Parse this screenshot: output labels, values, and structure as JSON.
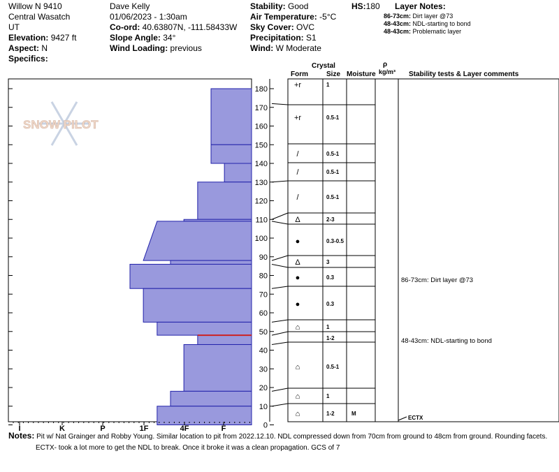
{
  "header": {
    "site": "Willow N 9410",
    "range": "Central Wasatch",
    "state": "UT",
    "elevation_label": "Elevation:",
    "elevation": "9427 ft",
    "aspect_label": "Aspect:",
    "aspect": "N",
    "specifics_label": "Specifics:",
    "observer": "Dave Kelly",
    "datetime": "01/06/2023 - 1:30am",
    "coord_label": "Co-ord:",
    "coord": "40.63807N, -111.58433W",
    "slope_label": "Slope Angle:",
    "slope": "34°",
    "wind_loading_label": "Wind Loading:",
    "wind_loading": "previous",
    "stability_label": "Stability:",
    "stability": "Good",
    "air_temp_label": "Air Temperature:",
    "air_temp": "-5°C",
    "sky_label": "Sky Cover:",
    "sky": "OVC",
    "precip_label": "Precipitation:",
    "precip": "S1",
    "wind_label": "Wind:",
    "wind": "W Moderate",
    "hs_label": "HS:",
    "hs": "180",
    "layer_notes_title": "Layer Notes:",
    "layer_notes": [
      {
        "range": "86-73cm:",
        "text": "Dirt layer @73"
      },
      {
        "range": "48-43cm:",
        "text": "NDL-starting to bond"
      },
      {
        "range": "48-43cm:",
        "text": "Problematic layer"
      }
    ]
  },
  "logo_text": "SNOW PILOT",
  "columns": {
    "crystal": "Crystal",
    "form": "Form",
    "size": "Size",
    "moisture": "Moisture",
    "rho": "ρ",
    "density": "kg/m³",
    "stability": "Stability tests & Layer comments"
  },
  "chart_data": {
    "type": "bar",
    "xlabel": "",
    "ylabel": "",
    "ylim": [
      0,
      180
    ],
    "yticks": [
      "0",
      "10",
      "20",
      "30",
      "40",
      "50",
      "60",
      "70",
      "80",
      "90",
      "100",
      "110",
      "120",
      "130",
      "140",
      "150",
      "160",
      "170",
      "180"
    ],
    "hardness_ticks": [
      "I",
      "K",
      "P",
      "1F",
      "4F",
      "F"
    ],
    "hardness_scale": [
      "I",
      "K",
      "P",
      "1F",
      "4F",
      "F"
    ],
    "layers": [
      {
        "top": 180,
        "bottom": 150,
        "hardness": 1.0
      },
      {
        "top": 150,
        "bottom": 140,
        "hardness": 1.0
      },
      {
        "top": 140,
        "bottom": 130,
        "hardness": 0.67
      },
      {
        "top": 130,
        "bottom": 110,
        "hardness": 1.33
      },
      {
        "top": 110,
        "bottom": 109,
        "hardness": 1.67
      },
      {
        "top": 109,
        "bottom": 88,
        "hardness": 2.67,
        "sloped_from": 2.33
      },
      {
        "top": 88,
        "bottom": 86,
        "hardness": 2.0
      },
      {
        "top": 86,
        "bottom": 73,
        "hardness": 3.0
      },
      {
        "top": 73,
        "bottom": 55,
        "hardness": 2.67
      },
      {
        "top": 55,
        "bottom": 48,
        "hardness": 2.33
      },
      {
        "top": 48,
        "bottom": 43,
        "hardness": 1.33
      },
      {
        "top": 43,
        "bottom": 18,
        "hardness": 1.67
      },
      {
        "top": 18,
        "bottom": 10,
        "hardness": 2.0
      },
      {
        "top": 10,
        "bottom": 0,
        "hardness": 2.33
      }
    ],
    "highlight_line_cm": 48
  },
  "layer_table": [
    {
      "top": 180,
      "bottom": 150,
      "form": "+r",
      "size": "1",
      "moisture": "",
      "label_at": 180
    },
    {
      "top": 172,
      "bottom": 150,
      "form": "+r",
      "size": "0.5-1",
      "moisture": "",
      "label_at": 165
    },
    {
      "top": 150,
      "bottom": 140,
      "form": "/",
      "size": "0.5-1",
      "moisture": "",
      "label_at": 145
    },
    {
      "top": 140,
      "bottom": 130,
      "form": "/",
      "size": "0.5-1",
      "moisture": "",
      "label_at": 135
    },
    {
      "top": 130,
      "bottom": 110,
      "form": "/",
      "size": "0.5-1",
      "moisture": "",
      "label_at": 121
    },
    {
      "top": 110,
      "bottom": 109,
      "form": "Δ",
      "size": "2-3",
      "moisture": "",
      "label_at": 110
    },
    {
      "top": 109,
      "bottom": 88,
      "form": "●",
      "size": "0.3-0.5",
      "moisture": "",
      "label_at": 99
    },
    {
      "top": 88,
      "bottom": 86,
      "form": "Δ",
      "size": "3",
      "moisture": "",
      "label_at": 87
    },
    {
      "top": 86,
      "bottom": 73,
      "form": "●",
      "size": "0.3",
      "moisture": "",
      "label_at": 79
    },
    {
      "top": 73,
      "bottom": 55,
      "form": "●",
      "size": "0.3",
      "moisture": "",
      "label_at": 64
    },
    {
      "top": 55,
      "bottom": 48,
      "form": "⌂",
      "size": "1",
      "moisture": "",
      "label_at": 51
    },
    {
      "top": 48,
      "bottom": 43,
      "form": "",
      "size": "1-2",
      "moisture": "",
      "label_at": 45
    },
    {
      "top": 43,
      "bottom": 18,
      "form": "⌂",
      "size": "0.5-1",
      "moisture": "",
      "label_at": 30
    },
    {
      "top": 18,
      "bottom": 10,
      "form": "⌂",
      "size": "1",
      "moisture": "",
      "label_at": 14
    },
    {
      "top": 10,
      "bottom": 0,
      "form": "⌂",
      "size": "1-2",
      "moisture": "M",
      "label_at": 5
    }
  ],
  "comments": [
    {
      "text": "86-73cm: Dirt layer @73",
      "at": 79
    },
    {
      "text": "48-43cm: NDL-starting to bond",
      "at": 45
    },
    {
      "text": "ECTX",
      "at": 1
    }
  ],
  "notes_label": "Notes:",
  "notes_line1": "Pit w/ Nat Grainger and Robby Young. Similar location to pit from 2022.12.10.  NDL compressed down from 70cm from ground to 48cm from ground. Rounding facets.",
  "notes_line2": "ECTX- took a lot more to get the NDL to break. Once it broke it was a clean propagation. GCS of 7",
  "colors": {
    "fill": "#9999dd",
    "stroke": "#2222aa",
    "highlight": "#cc2222",
    "logo": "#d9d9d9"
  }
}
